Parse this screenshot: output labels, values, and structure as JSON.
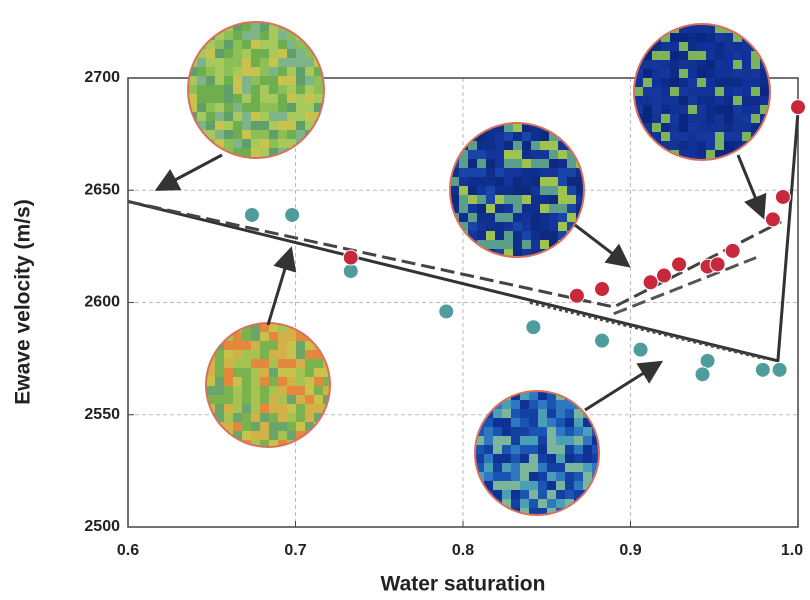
{
  "chart_data": {
    "type": "scatter",
    "x_label": "Water saturation",
    "y_label": "Ewave velocity (m/s)",
    "xlim": [
      0.6,
      1.0
    ],
    "ylim": [
      2500,
      2700
    ],
    "xticks": [
      0.6,
      0.7,
      0.8,
      0.9,
      {
        "value": 1.0,
        "label": "1.0"
      }
    ],
    "yticks": [
      2500,
      2550,
      2600,
      2650,
      2700
    ],
    "grid": true,
    "series": [
      {
        "mode": "markers",
        "color": "#4f9c9c",
        "x": [
          0.674,
          0.698,
          0.733,
          0.79,
          0.842,
          0.883,
          0.906,
          0.946,
          0.943,
          0.979,
          0.989
        ],
        "values": [
          2639,
          2639,
          2614,
          2596,
          2589,
          2583,
          2579,
          2574,
          2568,
          2570,
          2570
        ]
      },
      {
        "mode": "markers",
        "color": "#c8283c",
        "x": [
          0.733,
          0.868,
          0.883,
          0.912,
          0.92,
          0.929,
          0.946,
          0.952,
          0.961,
          0.985,
          0.991,
          1.0
        ],
        "values": [
          2620,
          2603,
          2606,
          2609,
          2612,
          2617,
          2616,
          2617,
          2623,
          2637,
          2647,
          2687
        ]
      },
      {
        "mode": "line",
        "dash": "solid",
        "color": "#333333",
        "x": [
          0.6,
          0.988,
          1.0
        ],
        "values": [
          2645,
          2574,
          2685
        ]
      },
      {
        "mode": "line",
        "dash": "dashed",
        "color": "#444444",
        "x": [
          0.6,
          0.89,
          0.99
        ],
        "values": [
          2645,
          2598,
          2636
        ]
      },
      {
        "mode": "line",
        "dash": "dotted",
        "color": "#444444",
        "x": [
          0.84,
          0.98
        ],
        "values": [
          2600,
          2575
        ]
      },
      {
        "mode": "line",
        "dash": "dashed",
        "color": "#555555",
        "x": [
          0.89,
          0.975
        ],
        "values": [
          2595,
          2620
        ]
      }
    ]
  }
}
